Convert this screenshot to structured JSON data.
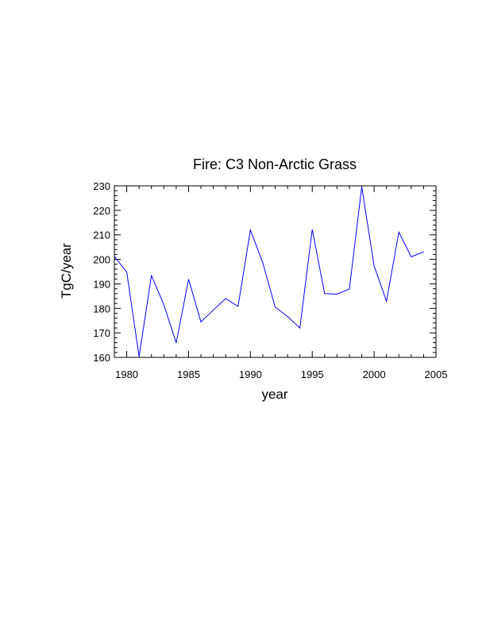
{
  "chart_data": {
    "type": "line",
    "title": "Fire: C3 Non-Arctic Grass",
    "xlabel": "year",
    "ylabel": "TgC/year",
    "xlim": [
      1979,
      2005
    ],
    "ylim": [
      160,
      230
    ],
    "x_major_ticks": [
      1980,
      1985,
      1990,
      1995,
      2000,
      2005
    ],
    "y_major_ticks": [
      160,
      170,
      180,
      190,
      200,
      210,
      220,
      230
    ],
    "grid": false,
    "line_color": "#0000ff",
    "series": [
      {
        "x": [
          1979,
          1980,
          1981,
          1982,
          1983,
          1984,
          1985,
          1986,
          1987,
          1988,
          1989,
          1990,
          1991,
          1992,
          1993,
          1994,
          1995,
          1996,
          1997,
          1998,
          1999,
          2000,
          2001,
          2002,
          2003,
          2004
        ],
        "values": [
          201.2,
          194.8,
          160.4,
          193.4,
          181.5,
          165.9,
          191.9,
          174.5,
          179.3,
          184.0,
          180.8,
          212.0,
          198.6,
          180.5,
          176.7,
          172.0,
          212.2,
          186.0,
          185.8,
          187.9,
          229.6,
          197.3,
          182.9,
          211.1,
          201.0,
          203.1
        ]
      }
    ]
  }
}
